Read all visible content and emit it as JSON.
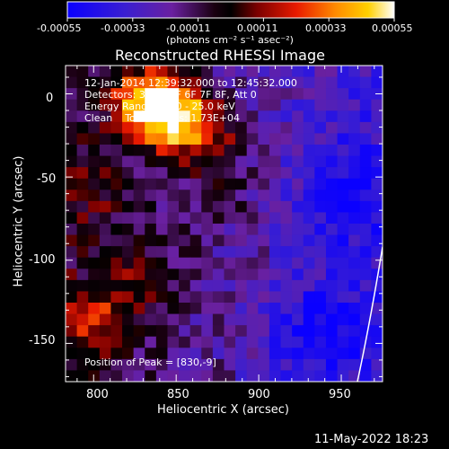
{
  "colorbar": {
    "ticks": [
      "-0.00055",
      "-0.00033",
      "-0.00011",
      "0.00011",
      "0.00033",
      "0.00055"
    ],
    "unit_label": "(photons cm⁻² s⁻¹ asec⁻²)",
    "vmin": -0.00055,
    "vmax": 0.00055
  },
  "title": "Reconstructed RHESSI Image",
  "info_lines": [
    "12-Jan-2014 12:39:32.000 to 12:45:32.000",
    "Detectors: 3F 4F 5F 6F 7F 8F, Att 0",
    "Energy Range: 12.0 - 25.0 keV",
    "Clean    Total counts: 1.73E+04"
  ],
  "peak_label": "Position of Peak = [830,-9]",
  "footer_date": "11-May-2022 18:23",
  "chart_data": {
    "type": "heatmap",
    "title": "Reconstructed RHESSI Image",
    "xlabel": "Heliocentric X (arcsec)",
    "ylabel": "Heliocentric Y (arcsec)",
    "xlim": [
      783,
      975
    ],
    "ylim": [
      -173,
      17
    ],
    "x_ticks": [
      800,
      850,
      900,
      950
    ],
    "y_ticks": [
      0,
      -50,
      -100,
      -150
    ],
    "colormap": "blue-purple-red-yellow-white",
    "peak_position": [
      830,
      -9
    ],
    "grid": false,
    "description_values": {
      "rows": 28,
      "cols": 28,
      "bright_regions": [
        {
          "x": 835,
          "y": -5,
          "level": 1.0
        },
        {
          "x": 850,
          "y": -15,
          "level": 0.85
        },
        {
          "x": 870,
          "y": -25,
          "level": 0.7
        },
        {
          "x": 800,
          "y": -60,
          "level": 0.55
        },
        {
          "x": 800,
          "y": -135,
          "level": 0.7
        },
        {
          "x": 830,
          "y": -115,
          "level": 0.6
        },
        {
          "x": 850,
          "y": -85,
          "level": 0.5
        },
        {
          "x": 880,
          "y": -60,
          "level": 0.55
        },
        {
          "x": 905,
          "y": -45,
          "level": 0.45
        }
      ],
      "dark_regions": [
        {
          "x": 955,
          "y": -60,
          "level": 0.15
        },
        {
          "x": 945,
          "y": -140,
          "level": 0.2
        },
        {
          "x": 920,
          "y": -150,
          "level": 0.25
        }
      ]
    }
  }
}
